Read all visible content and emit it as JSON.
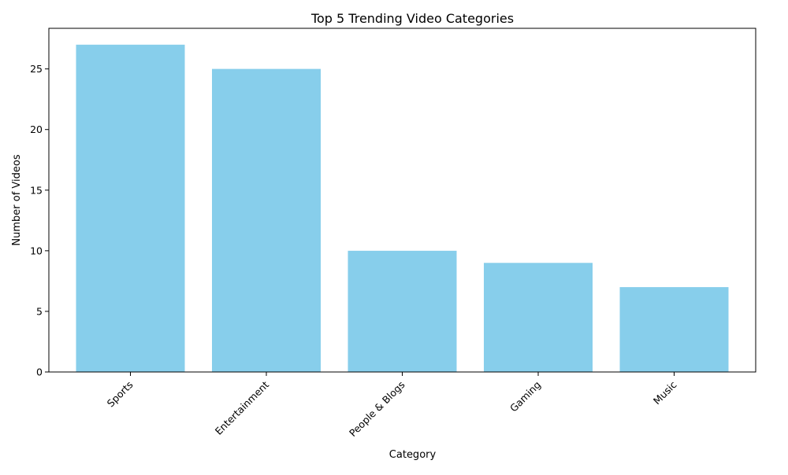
{
  "chart_data": {
    "type": "bar",
    "title": "Top 5 Trending Video Categories",
    "xlabel": "Category",
    "ylabel": "Number of Videos",
    "categories": [
      "Sports",
      "Entertainment",
      "People & Blogs",
      "Gaming",
      "Music"
    ],
    "values": [
      27,
      25,
      10,
      9,
      7
    ],
    "ylim": [
      0,
      28.35
    ],
    "yticks": [
      0,
      5,
      10,
      15,
      20,
      25
    ],
    "grid": false,
    "bar_color": "#87CEEB",
    "axis_color": "#000000"
  }
}
